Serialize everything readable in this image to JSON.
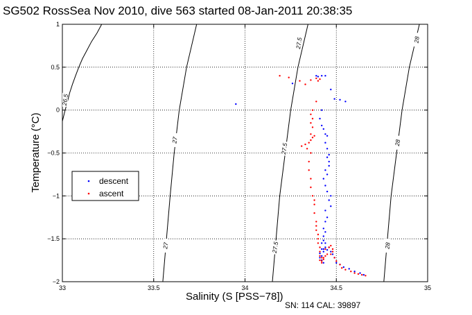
{
  "figure": {
    "title": "SG502 RossSea Nov 2010, dive 563 started 08-Jan-2011 20:38:35",
    "footer": "SN: 114  CAL: 39897"
  },
  "chart_data": {
    "type": "scatter",
    "title": "SG502 RossSea Nov 2010, dive 563 started 08-Jan-2011 20:38:35",
    "xlabel": "Salinity (S [PSS−78])",
    "ylabel": "Temperature (°C)",
    "xlim": [
      33,
      35
    ],
    "ylim": [
      -2,
      1
    ],
    "xticks": [
      "33",
      "33.5",
      "34",
      "34.5",
      "35"
    ],
    "yticks": [
      "−2",
      "−1.5",
      "−1",
      "−0.5",
      "0",
      "0.5",
      "1"
    ],
    "xtick_values": [
      33,
      33.5,
      34,
      34.5,
      35
    ],
    "ytick_values": [
      -2,
      -1.5,
      -1,
      -0.5,
      0,
      0.5,
      1
    ],
    "grid": true,
    "legend_position": "left",
    "series": [
      {
        "name": "descent",
        "color": "#0000ff",
        "x": [
          33.95,
          34.26,
          34.39,
          34.4,
          34.42,
          34.44,
          34.47,
          34.49,
          34.52,
          34.55,
          34.42,
          34.41,
          34.42,
          34.43,
          34.44,
          34.45,
          34.44,
          34.45,
          34.46,
          34.45,
          34.46,
          34.46,
          34.44,
          34.45,
          34.43,
          34.44,
          34.45,
          34.47,
          34.46,
          34.47,
          34.44,
          34.45,
          34.44,
          34.43,
          34.44,
          34.43,
          34.43,
          34.42,
          34.42,
          34.41,
          34.41,
          34.42,
          34.43,
          34.42,
          34.43,
          34.44,
          34.44,
          34.43,
          34.45,
          34.46,
          34.47,
          34.48,
          34.49,
          34.5,
          34.52,
          34.54,
          34.57,
          34.6,
          34.63,
          34.65
        ],
        "y": [
          0.07,
          0.31,
          0.4,
          0.39,
          0.4,
          0.4,
          0.24,
          0.13,
          0.12,
          0.1,
          0.0,
          -0.1,
          -0.18,
          -0.22,
          -0.28,
          -0.3,
          -0.38,
          -0.45,
          -0.52,
          -0.55,
          -0.6,
          -0.65,
          -0.7,
          -0.75,
          -0.8,
          -0.88,
          -0.95,
          -1.0,
          -1.05,
          -1.12,
          -1.17,
          -1.25,
          -1.3,
          -1.38,
          -1.42,
          -1.47,
          -1.52,
          -1.55,
          -1.62,
          -1.67,
          -1.72,
          -1.75,
          -1.78,
          -1.7,
          -1.65,
          -1.6,
          -1.55,
          -1.62,
          -1.63,
          -1.6,
          -1.65,
          -1.68,
          -1.72,
          -1.78,
          -1.8,
          -1.83,
          -1.85,
          -1.88,
          -1.9,
          -1.92
        ]
      },
      {
        "name": "ascent",
        "color": "#ff0000",
        "x": [
          34.19,
          34.24,
          34.3,
          34.33,
          34.36,
          34.39,
          34.4,
          34.41,
          34.39,
          34.37,
          34.36,
          34.37,
          34.36,
          34.37,
          34.36,
          34.38,
          34.37,
          34.36,
          34.35,
          34.33,
          34.31,
          34.34,
          34.36,
          34.35,
          34.35,
          34.36,
          34.36,
          34.37,
          34.38,
          34.38,
          34.38,
          34.39,
          34.39,
          34.39,
          34.4,
          34.4,
          34.4,
          34.41,
          34.41,
          34.41,
          34.42,
          34.41,
          34.42,
          34.42,
          34.43,
          34.43,
          34.44,
          34.45,
          34.44,
          34.46,
          34.47,
          34.48,
          34.48,
          34.47,
          34.49,
          34.5,
          34.52,
          34.53,
          34.55,
          34.58,
          34.6,
          34.62,
          34.64,
          34.66
        ],
        "y": [
          0.4,
          0.38,
          0.34,
          0.3,
          0.35,
          0.37,
          0.34,
          0.36,
          0.1,
          0.0,
          -0.05,
          -0.1,
          -0.15,
          -0.2,
          -0.28,
          -0.3,
          -0.32,
          -0.35,
          -0.38,
          -0.4,
          -0.42,
          -0.45,
          -0.5,
          -0.6,
          -0.7,
          -0.8,
          -0.9,
          -1.0,
          -1.05,
          -1.1,
          -1.2,
          -1.3,
          -1.35,
          -1.4,
          -1.45,
          -1.5,
          -1.55,
          -1.6,
          -1.65,
          -1.7,
          -1.72,
          -1.75,
          -1.78,
          -1.76,
          -1.74,
          -1.72,
          -1.7,
          -1.68,
          -1.62,
          -1.6,
          -1.58,
          -1.62,
          -1.65,
          -1.68,
          -1.72,
          -1.76,
          -1.8,
          -1.84,
          -1.86,
          -1.88,
          -1.9,
          -1.91,
          -1.92,
          -1.93
        ]
      }
    ],
    "isopycnals": [
      {
        "label": "26.5",
        "points": [
          [
            33.0,
            -0.13
          ],
          [
            33.015,
            0.0
          ],
          [
            33.028,
            0.1
          ],
          [
            33.04,
            0.2
          ],
          [
            33.055,
            0.3
          ],
          [
            33.072,
            0.4
          ],
          [
            33.09,
            0.5
          ],
          [
            33.11,
            0.6
          ],
          [
            33.135,
            0.7
          ],
          [
            33.16,
            0.8
          ],
          [
            33.19,
            0.9
          ],
          [
            33.215,
            1.0
          ]
        ]
      },
      {
        "label": "27",
        "points": [
          [
            33.55,
            -2.0
          ],
          [
            33.57,
            -1.5
          ],
          [
            33.59,
            -1.0
          ],
          [
            33.612,
            -0.5
          ],
          [
            33.64,
            0.0
          ],
          [
            33.68,
            0.5
          ],
          [
            33.735,
            1.0
          ]
        ]
      },
      {
        "label": "27.5",
        "points": [
          [
            34.15,
            -2.0
          ],
          [
            34.17,
            -1.5
          ],
          [
            34.19,
            -1.0
          ],
          [
            34.22,
            -0.5
          ],
          [
            34.25,
            0.0
          ],
          [
            34.29,
            0.5
          ],
          [
            34.345,
            1.0
          ]
        ]
      },
      {
        "label": "28",
        "points": [
          [
            34.76,
            -2.0
          ],
          [
            34.78,
            -1.5
          ],
          [
            34.8,
            -1.0
          ],
          [
            34.83,
            -0.5
          ],
          [
            34.86,
            0.0
          ],
          [
            34.9,
            0.5
          ],
          [
            34.955,
            1.0
          ]
        ]
      }
    ],
    "isopycnal_labels": [
      {
        "label": "26.5",
        "x": 33.015,
        "y": 0.12
      },
      {
        "label": "27",
        "x": 33.615,
        "y": -0.35
      },
      {
        "label": "27",
        "x": 33.565,
        "y": -1.58
      },
      {
        "label": "27.5",
        "x": 34.215,
        "y": -0.45
      },
      {
        "label": "27.5",
        "x": 34.165,
        "y": -1.6
      },
      {
        "label": "27.5",
        "x": 34.295,
        "y": 0.78
      },
      {
        "label": "28",
        "x": 34.835,
        "y": -0.38
      },
      {
        "label": "28",
        "x": 34.78,
        "y": -1.58
      },
      {
        "label": "28",
        "x": 34.94,
        "y": 0.82
      }
    ]
  }
}
